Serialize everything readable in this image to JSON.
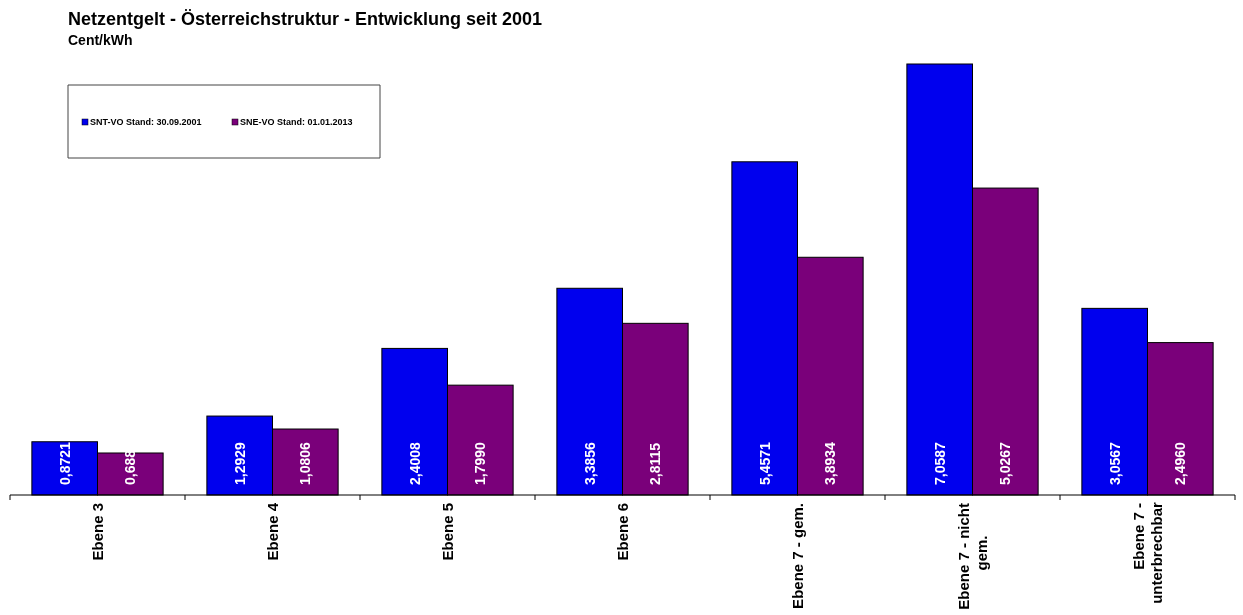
{
  "chart_data": {
    "type": "bar",
    "title": "Netzentgelt - Österreichstruktur - Entwicklung seit 2001",
    "subtitle": "Cent/kWh",
    "categories": [
      "Ebene 3",
      "Ebene 4",
      "Ebene 5",
      "Ebene 6",
      "Ebene 7 - gem.",
      "Ebene 7 - nicht gem.",
      "Ebene 7 - unterbrechbar"
    ],
    "series": [
      {
        "name": "SNT-VO Stand: 30.09.2001",
        "color": "#0000ee",
        "values": [
          0.8721,
          1.2929,
          2.4008,
          3.3856,
          5.4571,
          7.0587,
          3.0567
        ],
        "value_labels": [
          "0,8721",
          "1,2929",
          "2,4008",
          "3,3856",
          "5,4571",
          "7,0587",
          "3,0567"
        ]
      },
      {
        "name": "SNE-VO Stand: 01.01.2013",
        "color": "#7a007a",
        "values": [
          0.688,
          1.0806,
          1.799,
          2.8115,
          3.8934,
          5.0267,
          2.496
        ],
        "value_labels": [
          "0,688",
          "1,0806",
          "1,7990",
          "2,8115",
          "3,8934",
          "5,0267",
          "2,4960"
        ]
      }
    ],
    "legend": "top left",
    "tick_labels": "x"
  }
}
